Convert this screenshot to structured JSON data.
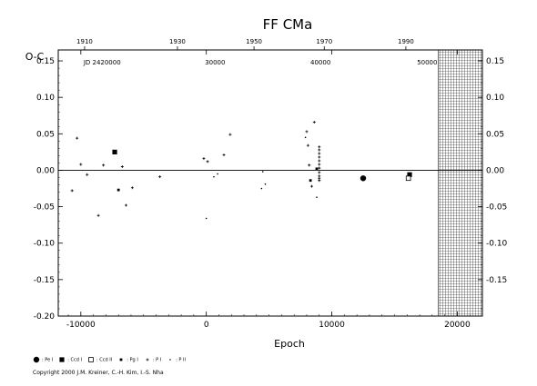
{
  "chart_data": {
    "type": "scatter",
    "title": "FF CMa",
    "ylabel": "O-C",
    "xlabel": "Epoch",
    "xlim": [
      -11800,
      22000
    ],
    "ylim": [
      -0.2,
      0.165
    ],
    "x_ticks": [
      -10000,
      0,
      10000,
      20000
    ],
    "y_ticks_left": [
      "-0.20",
      "-0.15",
      "-0.10",
      "-0.05",
      "0.00",
      "0.05",
      "0.10",
      "0.15"
    ],
    "y_ticks_right": [
      "-0.15",
      "-0.10",
      "-0.05",
      "0.00",
      "0.05",
      "0.10",
      "0.15"
    ],
    "y_tick_values_left": [
      -0.2,
      -0.15,
      -0.1,
      -0.05,
      0,
      0.05,
      0.1,
      0.15
    ],
    "y_tick_values_right": [
      -0.15,
      -0.1,
      -0.05,
      0,
      0.05,
      0.1,
      0.15
    ],
    "top_year_ticks": [
      "1910",
      "1930",
      "1950",
      "1970",
      "1990"
    ],
    "top_year_epochs": [
      -9700,
      -2300,
      3800,
      9400,
      15900
    ],
    "jd_labels": [
      "JD 2420000",
      "30000",
      "40000",
      "50000"
    ],
    "jd_epochs": [
      -8300,
      700,
      9100,
      17600
    ],
    "hatched_region_start": 18500,
    "zero_line": true,
    "series": [
      {
        "name": "Pe I",
        "marker": "filled-circle",
        "points": [
          [
            12500,
            -0.011
          ]
        ]
      },
      {
        "name": "Ccd I",
        "marker": "filled-square",
        "points": [
          [
            -7300,
            0.025
          ],
          [
            16200,
            -0.006
          ]
        ]
      },
      {
        "name": "Ccd II",
        "marker": "open-square",
        "points": [
          [
            16100,
            -0.011
          ]
        ]
      },
      {
        "name": "Pg I",
        "marker": "small-filled-square",
        "points": [
          [
            -7000,
            -0.027
          ],
          [
            8800,
            0.002
          ],
          [
            8300,
            -0.014
          ]
        ]
      },
      {
        "name": "P I",
        "marker": "plus",
        "points": [
          [
            -10700,
            -0.028
          ],
          [
            -10300,
            0.044
          ],
          [
            -10000,
            0.008
          ],
          [
            -9500,
            -0.006
          ],
          [
            -8600,
            -0.062
          ],
          [
            -8200,
            0.007
          ],
          [
            -6700,
            0.005
          ],
          [
            -6400,
            -0.048
          ],
          [
            -5900,
            -0.024
          ],
          [
            -3700,
            -0.009
          ],
          [
            -200,
            0.016
          ],
          [
            100,
            0.012
          ],
          [
            1400,
            0.021
          ],
          [
            1900,
            0.049
          ],
          [
            8000,
            0.053
          ],
          [
            8100,
            0.034
          ],
          [
            8600,
            0.066
          ],
          [
            8200,
            0.007
          ],
          [
            8400,
            -0.022
          ],
          [
            9000,
            0.013
          ],
          [
            9000,
            0.023
          ],
          [
            9000,
            -0.003
          ],
          [
            9000,
            -0.008
          ],
          [
            9000,
            -0.011
          ],
          [
            9000,
            -0.014
          ],
          [
            9000,
            0.028
          ],
          [
            9000,
            0.032
          ],
          [
            9000,
            0.018
          ],
          [
            9000,
            0.003
          ],
          [
            9000,
            0.008
          ]
        ]
      },
      {
        "name": "P II",
        "marker": "dot",
        "points": [
          [
            4400,
            -0.025
          ],
          [
            4700,
            -0.019
          ],
          [
            0,
            -0.066
          ],
          [
            600,
            -0.009
          ],
          [
            900,
            -0.005
          ],
          [
            4500,
            -0.002
          ],
          [
            8800,
            -0.037
          ],
          [
            7900,
            0.045
          ]
        ]
      }
    ]
  },
  "copyright": "Copyright 2000 J.M. Kreiner, C.-H. Kim, I.-S. Nha"
}
